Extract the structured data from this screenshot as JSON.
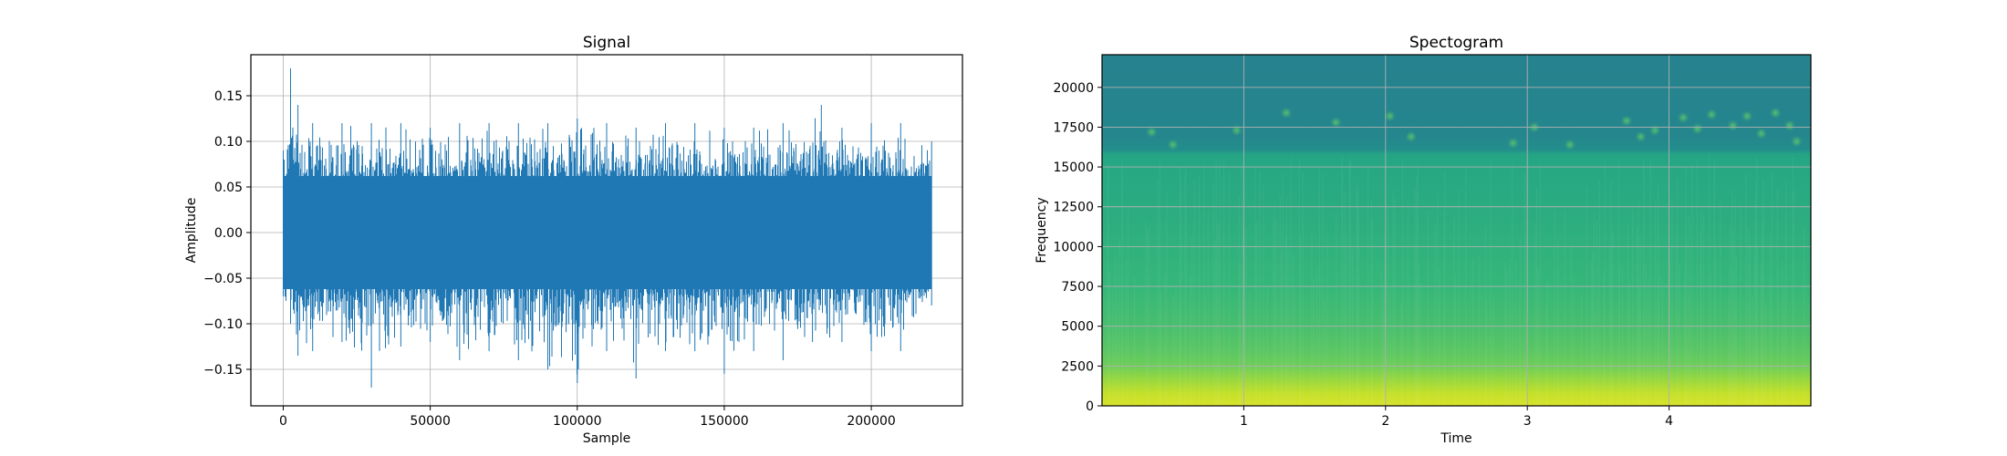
{
  "chart_data": [
    {
      "type": "line",
      "title": "Signal",
      "xlabel": "Sample",
      "ylabel": "Amplitude",
      "xlim": [
        -11000,
        231000
      ],
      "ylim": [
        -0.19,
        0.195
      ],
      "xticks": [
        0,
        50000,
        100000,
        150000,
        200000
      ],
      "xtick_labels": [
        "0",
        "50000",
        "100000",
        "150000",
        "200000"
      ],
      "yticks": [
        -0.15,
        -0.1,
        -0.05,
        0.0,
        0.05,
        0.1,
        0.15
      ],
      "ytick_labels": [
        "−0.15",
        "−0.10",
        "−0.05",
        "0.00",
        "0.05",
        "0.10",
        "0.15"
      ],
      "grid": true,
      "color": "#1f77b4",
      "series": [
        {
          "x_range": [
            0,
            220500
          ],
          "envelope_max": [
            [
              0,
              0.09
            ],
            [
              2500,
              0.18
            ],
            [
              5000,
              0.14
            ],
            [
              10000,
              0.12
            ],
            [
              20000,
              0.12
            ],
            [
              30000,
              0.12
            ],
            [
              40000,
              0.12
            ],
            [
              50000,
              0.115
            ],
            [
              60000,
              0.12
            ],
            [
              70000,
              0.12
            ],
            [
              80000,
              0.12
            ],
            [
              90000,
              0.12
            ],
            [
              100000,
              0.125
            ],
            [
              110000,
              0.12
            ],
            [
              120000,
              0.115
            ],
            [
              130000,
              0.12
            ],
            [
              140000,
              0.12
            ],
            [
              150000,
              0.115
            ],
            [
              160000,
              0.115
            ],
            [
              170000,
              0.12
            ],
            [
              183000,
              0.14
            ],
            [
              190000,
              0.115
            ],
            [
              200000,
              0.12
            ],
            [
              210000,
              0.12
            ],
            [
              220500,
              0.1
            ]
          ],
          "envelope_min": [
            [
              0,
              -0.07
            ],
            [
              2500,
              -0.1
            ],
            [
              5000,
              -0.135
            ],
            [
              10000,
              -0.13
            ],
            [
              20000,
              -0.12
            ],
            [
              30000,
              -0.17
            ],
            [
              40000,
              -0.125
            ],
            [
              50000,
              -0.12
            ],
            [
              60000,
              -0.14
            ],
            [
              70000,
              -0.13
            ],
            [
              80000,
              -0.14
            ],
            [
              90000,
              -0.15
            ],
            [
              100000,
              -0.165
            ],
            [
              110000,
              -0.13
            ],
            [
              120000,
              -0.16
            ],
            [
              130000,
              -0.13
            ],
            [
              140000,
              -0.13
            ],
            [
              150000,
              -0.155
            ],
            [
              160000,
              -0.13
            ],
            [
              170000,
              -0.14
            ],
            [
              180000,
              -0.12
            ],
            [
              190000,
              -0.12
            ],
            [
              200000,
              -0.13
            ],
            [
              210000,
              -0.13
            ],
            [
              220500,
              -0.08
            ]
          ]
        }
      ]
    },
    {
      "type": "heatmap",
      "title": "Spectogram",
      "xlabel": "Time",
      "ylabel": "Frequency",
      "xlim": [
        0,
        5.0
      ],
      "ylim": [
        0,
        22050
      ],
      "xticks": [
        1,
        2,
        3,
        4
      ],
      "xtick_labels": [
        "1",
        "2",
        "3",
        "4"
      ],
      "yticks": [
        0,
        2500,
        5000,
        7500,
        10000,
        12500,
        15000,
        17500,
        20000
      ],
      "ytick_labels": [
        "0",
        "2500",
        "5000",
        "7500",
        "10000",
        "12500",
        "15000",
        "17500",
        "20000"
      ],
      "grid": true,
      "colormap": "viridis",
      "frequency_intensity_profile": [
        [
          0,
          0.95
        ],
        [
          800,
          0.92
        ],
        [
          1500,
          0.87
        ],
        [
          2500,
          0.8
        ],
        [
          3500,
          0.76
        ],
        [
          5000,
          0.72
        ],
        [
          7500,
          0.68
        ],
        [
          10000,
          0.65
        ],
        [
          12500,
          0.62
        ],
        [
          15000,
          0.6
        ],
        [
          15800,
          0.58
        ],
        [
          16100,
          0.47
        ],
        [
          17000,
          0.44
        ],
        [
          19000,
          0.43
        ],
        [
          22050,
          0.42
        ]
      ],
      "highlight_points": [
        [
          0.35,
          17200
        ],
        [
          0.5,
          16400
        ],
        [
          0.95,
          17300
        ],
        [
          1.3,
          18400
        ],
        [
          1.65,
          17800
        ],
        [
          2.03,
          18200
        ],
        [
          2.18,
          16900
        ],
        [
          2.9,
          16500
        ],
        [
          3.05,
          17500
        ],
        [
          3.3,
          16400
        ],
        [
          3.7,
          17900
        ],
        [
          3.8,
          16900
        ],
        [
          3.9,
          17300
        ],
        [
          4.1,
          18100
        ],
        [
          4.2,
          17400
        ],
        [
          4.3,
          18300
        ],
        [
          4.45,
          17600
        ],
        [
          4.55,
          18200
        ],
        [
          4.65,
          17100
        ],
        [
          4.75,
          18400
        ],
        [
          4.85,
          17600
        ],
        [
          4.9,
          16600
        ]
      ]
    }
  ]
}
